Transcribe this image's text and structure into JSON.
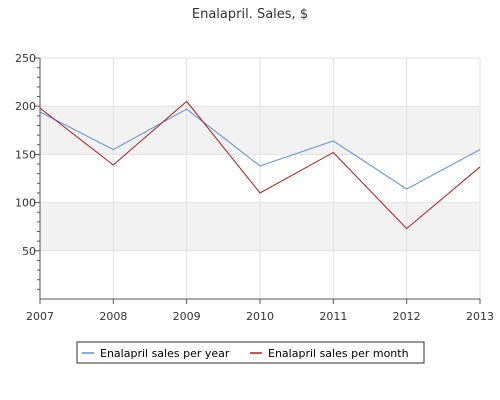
{
  "chart_data": {
    "type": "line",
    "title": "Enalapril. Sales, $",
    "xlabel": "",
    "ylabel": "",
    "x": [
      "2007",
      "2008",
      "2009",
      "2010",
      "2011",
      "2012",
      "2013"
    ],
    "ylim": [
      0,
      250
    ],
    "yticks": [
      50,
      100,
      150,
      200,
      250
    ],
    "series": [
      {
        "name": "Enalapril sales per year",
        "color": "#5b8fd8",
        "values": [
          194,
          155,
          197,
          138,
          164,
          114,
          155
        ]
      },
      {
        "name": "Enalapril sales per month",
        "color": "#a91e1e",
        "values": [
          198,
          139,
          205,
          110,
          152,
          73,
          137
        ]
      }
    ],
    "grid": true,
    "legend_position": "bottom-center"
  }
}
